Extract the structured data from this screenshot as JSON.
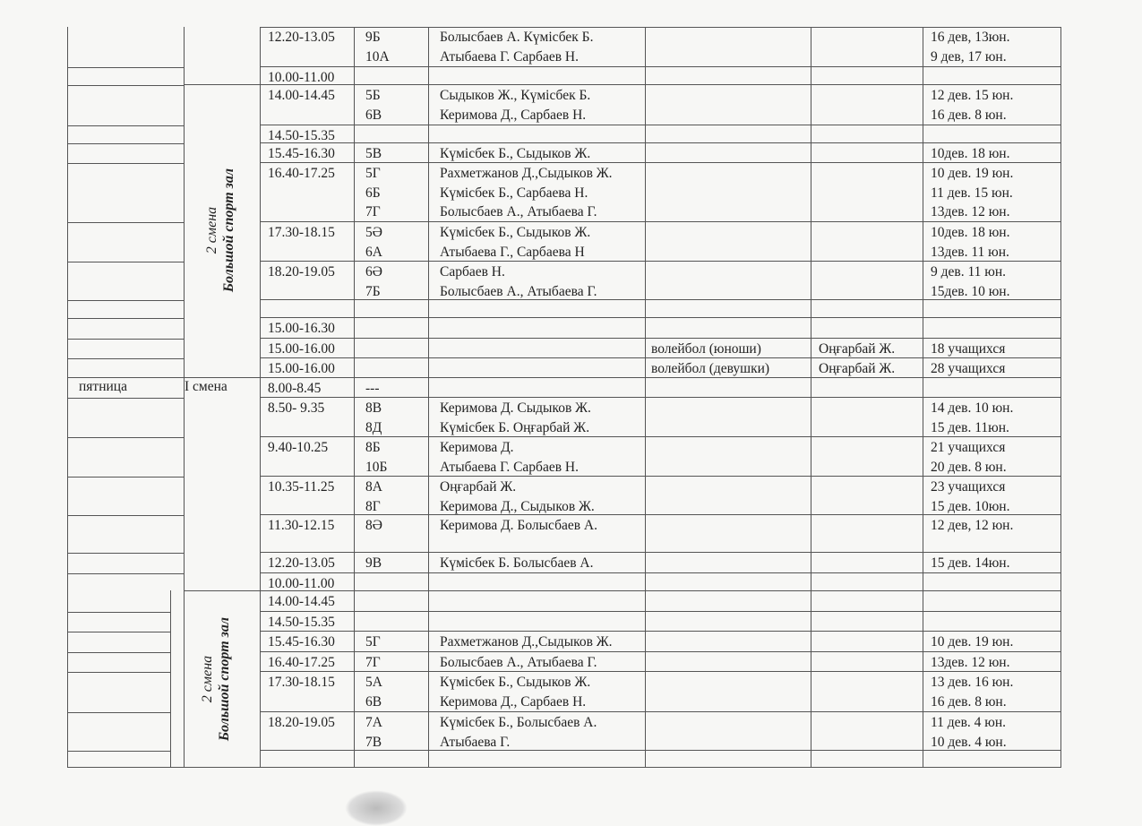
{
  "left": {
    "day_friday": "пятница",
    "shift1_label": "I смена",
    "shift2_line1": "2 смена",
    "shift2_line2": "Большой спорт зал"
  },
  "rows": [
    {
      "time": "12.20-13.05",
      "classes": [
        "9Б",
        "10А"
      ],
      "names": [
        "Болысбаев А. Күмісбек Б.",
        "Атыбаева Г. Сарбаев Н."
      ],
      "activity": "",
      "teacher": "",
      "counts": [
        "16 дев, 13юн.",
        "9 дев, 17 юн."
      ]
    },
    {
      "time": "10.00-11.00",
      "classes": [],
      "names": [],
      "activity": "",
      "teacher": "",
      "counts": []
    },
    {
      "time": "14.00-14.45",
      "classes": [
        "5Б",
        "6В"
      ],
      "names": [
        "Сыдыков Ж., Күмісбек Б.",
        "Керимова Д., Сарбаев Н."
      ],
      "activity": "",
      "teacher": "",
      "counts": [
        "12 дев. 15 юн.",
        "16 дев. 8 юн."
      ]
    },
    {
      "time": "14.50-15.35",
      "classes": [],
      "names": [],
      "activity": "",
      "teacher": "",
      "counts": []
    },
    {
      "time": "15.45-16.30",
      "classes": [
        "5В"
      ],
      "names": [
        "Күмісбек Б., Сыдыков Ж."
      ],
      "activity": "",
      "teacher": "",
      "counts": [
        "10дев. 18 юн."
      ]
    },
    {
      "time": "16.40-17.25",
      "classes": [
        "5Г",
        "6Б",
        "7Г"
      ],
      "names": [
        "Рахметжанов Д.,Сыдыков Ж.",
        "Күмісбек Б., Сарбаева Н.",
        "Болысбаев А., Атыбаева Г."
      ],
      "activity": "",
      "teacher": "",
      "counts": [
        "10 дев. 19 юн.",
        "11 дев. 15 юн.",
        "13дев. 12 юн."
      ]
    },
    {
      "time": "17.30-18.15",
      "classes": [
        "5Ә",
        "6А"
      ],
      "names": [
        "Күмісбек Б., Сыдыков Ж.",
        "Атыбаева Г., Сарбаева Н"
      ],
      "activity": "",
      "teacher": "",
      "counts": [
        "10дев. 18 юн.",
        "13дев. 11 юн."
      ]
    },
    {
      "time": "18.20-19.05",
      "classes": [
        "6Ә",
        "7Б"
      ],
      "names": [
        "Сарбаев Н.",
        "Болысбаев А., Атыбаева Г."
      ],
      "activity": "",
      "teacher": "",
      "counts": [
        "9 дев. 11 юн.",
        "15дев. 10 юн."
      ]
    },
    {
      "time": "",
      "classes": [],
      "names": [],
      "activity": "",
      "teacher": "",
      "counts": []
    },
    {
      "time": "15.00-16.30",
      "classes": [],
      "names": [],
      "activity": "",
      "teacher": "",
      "counts": []
    },
    {
      "time": "15.00-16.00",
      "classes": [],
      "names": [],
      "activity": "волейбол (юноши)",
      "teacher": "Оңғарбай Ж.",
      "counts": [
        "18 учащихся"
      ]
    },
    {
      "time": "15.00-16.00",
      "classes": [],
      "names": [],
      "activity": "волейбол (девушки)",
      "teacher": "Оңғарбай Ж.",
      "counts": [
        "28 учащихся"
      ]
    },
    {
      "time": "8.00-8.45",
      "classes": [
        "---"
      ],
      "names": [],
      "activity": "",
      "teacher": "",
      "counts": []
    },
    {
      "time": "8.50- 9.35",
      "classes": [
        "8В",
        "8Д"
      ],
      "names": [
        "Керимова Д. Сыдыков Ж.",
        "Күмісбек Б. Оңғарбай Ж."
      ],
      "activity": "",
      "teacher": "",
      "counts": [
        "14 дев. 10 юн.",
        "15 дев. 11юн."
      ]
    },
    {
      "time": "9.40-10.25",
      "classes": [
        "8Б",
        "10Б"
      ],
      "names": [
        "Керимова Д.",
        "Атыбаева Г. Сарбаев Н."
      ],
      "activity": "",
      "teacher": "",
      "counts": [
        "21 учащихся",
        "20 дев. 8 юн."
      ]
    },
    {
      "time": "10.35-11.25",
      "classes": [
        "8А",
        "8Г"
      ],
      "names": [
        "Оңғарбай Ж.",
        "Керимова Д., Сыдыков Ж."
      ],
      "activity": "",
      "teacher": "",
      "counts": [
        "23 учащихся",
        "15 дев. 10юн."
      ]
    },
    {
      "time": "11.30-12.15",
      "classes": [
        "8Ә"
      ],
      "names": [
        "Керимова Д. Болысбаев А."
      ],
      "activity": "",
      "teacher": "",
      "counts": [
        "12 дев, 12 юн."
      ]
    },
    {
      "time": "12.20-13.05",
      "classes": [
        "9В"
      ],
      "names": [
        "Күмісбек Б. Болысбаев А."
      ],
      "activity": "",
      "teacher": "",
      "counts": [
        "15 дев. 14юн."
      ]
    },
    {
      "time": "10.00-11.00",
      "classes": [],
      "names": [],
      "activity": "",
      "teacher": "",
      "counts": []
    },
    {
      "time": "14.00-14.45",
      "classes": [],
      "names": [],
      "activity": "",
      "teacher": "",
      "counts": []
    },
    {
      "time": "14.50-15.35",
      "classes": [],
      "names": [],
      "activity": "",
      "teacher": "",
      "counts": []
    },
    {
      "time": "15.45-16.30",
      "classes": [
        "5Г"
      ],
      "names": [
        "Рахметжанов Д.,Сыдыков Ж."
      ],
      "activity": "",
      "teacher": "",
      "counts": [
        "10 дев. 19 юн."
      ]
    },
    {
      "time": "16.40-17.25",
      "classes": [
        "7Г"
      ],
      "names": [
        "Болысбаев А., Атыбаева Г."
      ],
      "activity": "",
      "teacher": "",
      "counts": [
        "13дев. 12 юн."
      ]
    },
    {
      "time": "17.30-18.15",
      "classes": [
        "5А",
        "6В"
      ],
      "names": [
        "Күмісбек Б., Сыдыков Ж.",
        "Керимова Д., Сарбаев Н."
      ],
      "activity": "",
      "teacher": "",
      "counts": [
        "13 дев. 16 юн.",
        "16 дев. 8 юн."
      ]
    },
    {
      "time": "18.20-19.05",
      "classes": [
        "7А",
        "7В"
      ],
      "names": [
        "Күмісбек Б., Болысбаев А.",
        "Атыбаева Г."
      ],
      "activity": "",
      "teacher": "",
      "counts": [
        "11 дев. 4 юн.",
        "10 дев. 4 юн."
      ]
    },
    {
      "time": "",
      "classes": [],
      "names": [],
      "activity": "",
      "teacher": "",
      "counts": []
    }
  ]
}
